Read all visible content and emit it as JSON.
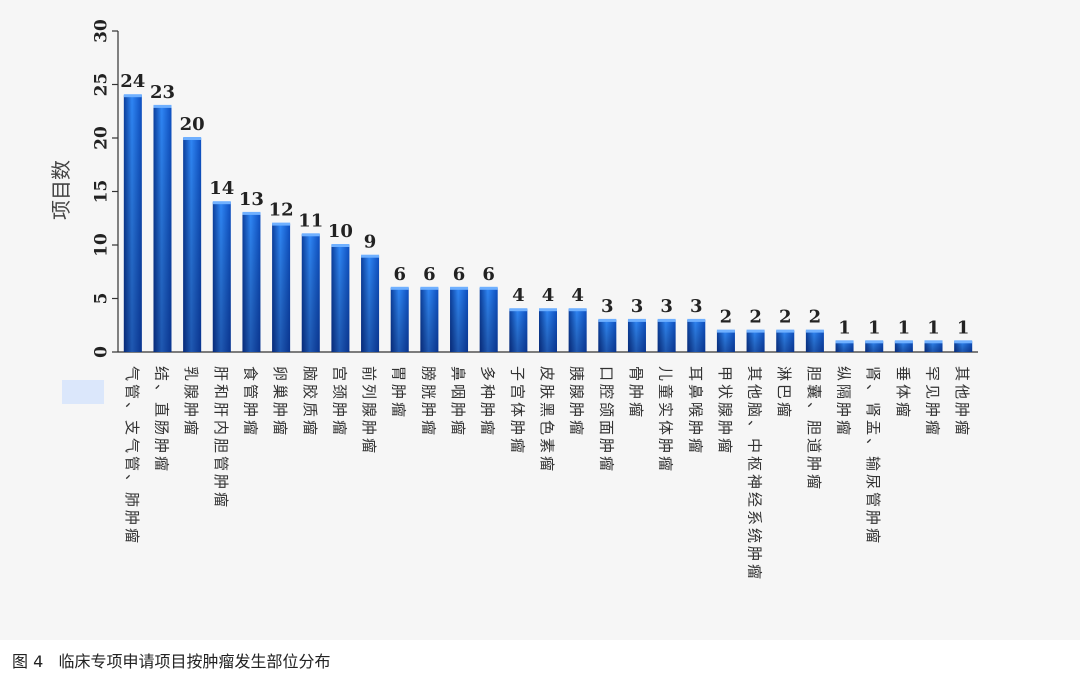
{
  "caption": "图 4   临床专项申请项目按肿瘤发生部位分布",
  "chart_data": {
    "type": "bar",
    "ylabel": "项目数",
    "ylim": [
      0,
      30
    ],
    "yticks": [
      0,
      5,
      10,
      15,
      20,
      25,
      30
    ],
    "bar_color": "#1e6fe0",
    "categories": [
      "气管、支气管、肺肿瘤",
      "结、直肠肿瘤",
      "乳腺肿瘤",
      "肝和肝内胆管肿瘤",
      "食管肿瘤",
      "卵巢肿瘤",
      "脑胶质瘤",
      "宫颈肿瘤",
      "前列腺肿瘤",
      "胃肿瘤",
      "膀胱肿瘤",
      "鼻咽肿瘤",
      "多种肿瘤",
      "子宫体肿瘤",
      "皮肤黑色素瘤",
      "胰腺肿瘤",
      "口腔颌面肿瘤",
      "骨肿瘤",
      "儿童实体肿瘤",
      "耳鼻喉肿瘤",
      "甲状腺肿瘤",
      "其他脑、中枢神经系统肿瘤",
      "淋巴瘤",
      "胆囊、胆道肿瘤",
      "纵隔肿瘤",
      "肾、肾盂、输尿管肿瘤",
      "垂体瘤",
      "罕见肿瘤",
      "其他肿瘤"
    ],
    "values": [
      24,
      23,
      20,
      14,
      13,
      12,
      11,
      10,
      9,
      6,
      6,
      6,
      6,
      4,
      4,
      4,
      3,
      3,
      3,
      3,
      2,
      2,
      2,
      2,
      1,
      1,
      1,
      1,
      1
    ]
  }
}
